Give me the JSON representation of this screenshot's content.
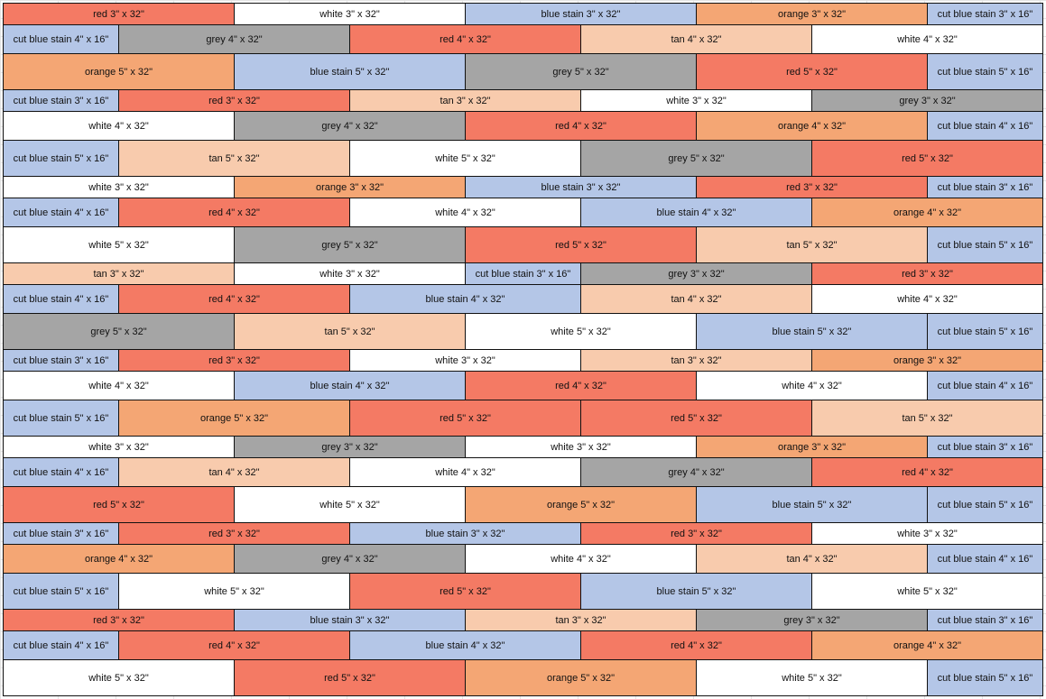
{
  "rows": [
    [
      "red 3\" x 32\"",
      "white 3\" x 32\"",
      "blue stain 3\" x 32\"",
      "orange 3\" x 32\"",
      "cut blue stain 3\" x 16\""
    ],
    [
      "cut blue stain 4\" x 16\"",
      "grey 4\" x 32\"",
      "red 4\" x 32\"",
      "tan 4\" x 32\"",
      "white 4\" x 32\""
    ],
    [
      "orange 5\" x 32\"",
      "blue stain 5\" x 32\"",
      "grey 5\" x 32\"",
      "red 5\" x 32\"",
      "cut blue stain 5\" x 16\""
    ],
    [
      "cut blue stain 3\" x 16\"",
      "red 3\" x 32\"",
      "tan 3\" x 32\"",
      "white 3\" x 32\"",
      "grey 3\" x 32\""
    ],
    [
      "white 4\" x 32\"",
      "grey 4\" x 32\"",
      "red 4\" x 32\"",
      "orange 4\" x 32\"",
      "cut blue stain 4\" x 16\""
    ],
    [
      "cut blue stain 5\" x 16\"",
      "tan 5\" x 32\"",
      "white 5\" x 32\"",
      "grey 5\" x 32\"",
      "red 5\" x 32\""
    ],
    [
      "white 3\" x 32\"",
      "orange 3\" x 32\"",
      "blue stain 3\" x 32\"",
      "red 3\" x 32\"",
      "cut blue stain 3\" x 16\""
    ],
    [
      "cut blue stain 4\" x 16\"",
      "red 4\" x 32\"",
      "white 4\" x 32\"",
      "blue stain 4\" x 32\"",
      "orange 4\" x 32\""
    ],
    [
      "white 5\" x 32\"",
      "grey 5\" x 32\"",
      "red 5\" x 32\"",
      "tan 5\" x 32\"",
      "cut blue stain 5\" x 16\""
    ],
    [
      "tan 3\" x 32\"",
      "white 3\" x 32\"",
      "cut blue stain 3\" x 16\"",
      "grey 3\" x 32\"",
      "red 3\" x 32\""
    ],
    [
      "cut blue stain 4\" x 16\"",
      "red 4\" x 32\"",
      "blue stain 4\" x 32\"",
      "tan 4\" x 32\"",
      "white 4\" x 32\""
    ],
    [
      "grey 5\" x 32\"",
      "tan 5\" x 32\"",
      "white 5\" x 32\"",
      "blue stain 5\" x 32\"",
      "cut blue stain 5\" x 16\""
    ],
    [
      "cut blue stain 3\" x 16\"",
      "red 3\" x 32\"",
      "white 3\" x 32\"",
      "tan 3\" x 32\"",
      "orange 3\" x 32\""
    ],
    [
      "white 4\" x 32\"",
      "blue stain 4\" x 32\"",
      "red 4\" x 32\"",
      "white 4\" x 32\"",
      "cut blue stain 4\" x 16\""
    ],
    [
      "cut blue stain 5\" x 16\"",
      "orange 5\" x 32\"",
      "red 5\" x 32\"",
      "red 5\" x 32\"",
      "tan 5\" x 32\""
    ],
    [
      "white 3\" x 32\"",
      "grey 3\" x 32\"",
      "white 3\" x 32\"",
      "orange 3\" x 32\"",
      "cut blue stain 3\" x 16\""
    ],
    [
      "cut blue stain 4\" x 16\"",
      "tan 4\" x 32\"",
      "white 4\" x 32\"",
      "grey 4\" x 32\"",
      "red 4\" x 32\""
    ],
    [
      "red 5\" x 32\"",
      "white 5\" x 32\"",
      "orange 5\" x 32\"",
      "blue stain 5\" x 32\"",
      "cut blue stain 5\" x 16\""
    ],
    [
      "cut blue stain 3\" x 16\"",
      "red 3\" x 32\"",
      "blue stain 3\" x 32\"",
      "red 3\" x 32\"",
      "white 3\" x 32\""
    ],
    [
      "orange 4\" x 32\"",
      "grey 4\" x 32\"",
      "white 4\" x 32\"",
      "tan 4\" x 32\"",
      "cut blue stain 4\" x 16\""
    ],
    [
      "cut blue stain 5\" x 16\"",
      "white 5\" x 32\"",
      "red 5\" x 32\"",
      "blue stain 5\" x 32\"",
      "white 5\" x 32\""
    ],
    [
      "red 3\" x 32\"",
      "blue stain 3\" x 32\"",
      "tan 3\" x 32\"",
      "grey 3\" x 32\"",
      "cut blue stain 3\" x 16\""
    ],
    [
      "cut blue stain 4\" x 16\"",
      "red 4\" x 32\"",
      "blue stain 4\" x 32\"",
      "red 4\" x 32\"",
      "orange 4\" x 32\""
    ],
    [
      "white 5\" x 32\"",
      "red 5\" x 32\"",
      "orange 5\" x 32\"",
      "white 5\" x 32\"",
      "cut blue stain 5\" x 16\""
    ]
  ]
}
